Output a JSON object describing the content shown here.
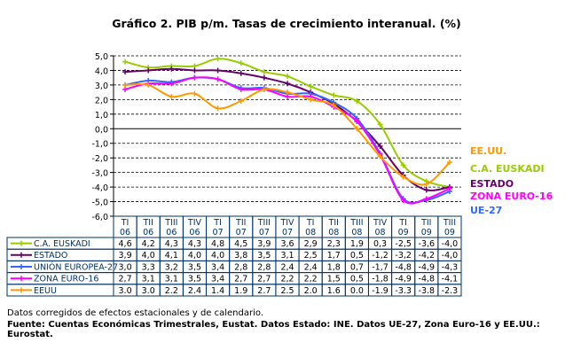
{
  "chart_data": {
    "type": "line",
    "title": "Gráfico 2. PIB p/m. Tasas de crecimiento interanual. (%)",
    "categories": [
      [
        "TI",
        "06"
      ],
      [
        "TII",
        "06"
      ],
      [
        "TIII",
        "06"
      ],
      [
        "TIV",
        "06"
      ],
      [
        "TI",
        "07"
      ],
      [
        "TII",
        "07"
      ],
      [
        "TIII",
        "07"
      ],
      [
        "TIV",
        "07"
      ],
      [
        "TI",
        "08"
      ],
      [
        "TII",
        "08"
      ],
      [
        "TIII",
        "08"
      ],
      [
        "TIV",
        "08"
      ],
      [
        "TI",
        "09"
      ],
      [
        "TII",
        "09"
      ],
      [
        "TIII",
        "09"
      ]
    ],
    "ylim": [
      -6,
      5
    ],
    "yticks": [
      "5,0",
      "4,0",
      "3,0",
      "2,0",
      "1,0",
      "0,0",
      "-1,0",
      "-2,0",
      "-3,0",
      "-4,0",
      "-5,0",
      "-6,0"
    ],
    "grid": true,
    "legend_placement": "table below plot; labels at right end of lines",
    "series": [
      {
        "name": "C.A. EUSKADI",
        "label": "C.A. EUSKADI",
        "color": "#99cc00",
        "values": [
          4.6,
          4.2,
          4.3,
          4.3,
          4.8,
          4.5,
          3.9,
          3.6,
          2.9,
          2.3,
          1.9,
          0.3,
          -2.5,
          -3.6,
          -4.0
        ],
        "display": [
          "4,6",
          "4,2",
          "4,3",
          "4,3",
          "4,8",
          "4,5",
          "3,9",
          "3,6",
          "2,9",
          "2,3",
          "1,9",
          "0,3",
          "-2,5",
          "-3,6",
          "-4,0"
        ]
      },
      {
        "name": "ESTADO",
        "label": "ESTADO",
        "color": "#660066",
        "values": [
          3.9,
          4.0,
          4.1,
          4.0,
          4.0,
          3.8,
          3.5,
          3.1,
          2.5,
          1.7,
          0.5,
          -1.2,
          -3.2,
          -4.2,
          -4.0
        ],
        "display": [
          "3,9",
          "4,0",
          "4,1",
          "4,0",
          "4,0",
          "3,8",
          "3,5",
          "3,1",
          "2,5",
          "1,7",
          "0,5",
          "-1,2",
          "-3,2",
          "-4,2",
          "-4,0"
        ]
      },
      {
        "name": "UNIÓN EUROPEA-27",
        "label": "UE-27",
        "color": "#3366ff",
        "values": [
          3.0,
          3.3,
          3.2,
          3.5,
          3.4,
          2.8,
          2.8,
          2.4,
          2.4,
          1.8,
          0.7,
          -1.7,
          -4.8,
          -4.9,
          -4.3
        ],
        "display": [
          "3,0",
          "3,3",
          "3,2",
          "3,5",
          "3,4",
          "2,8",
          "2,8",
          "2,4",
          "2,4",
          "1,8",
          "0,7",
          "-1,7",
          "-4,8",
          "-4,9",
          "-4,3"
        ]
      },
      {
        "name": "ZONA EURO-16",
        "label": "ZONA EURO-16",
        "color": "#ff00ff",
        "values": [
          2.7,
          3.1,
          3.1,
          3.5,
          3.4,
          2.7,
          2.7,
          2.2,
          2.2,
          1.5,
          0.5,
          -1.8,
          -4.9,
          -4.8,
          -4.1
        ],
        "display": [
          "2,7",
          "3,1",
          "3,1",
          "3,5",
          "3,4",
          "2,7",
          "2,7",
          "2,2",
          "2,2",
          "1,5",
          "0,5",
          "-1,8",
          "-4,9",
          "-4,8",
          "-4,1"
        ]
      },
      {
        "name": "EEUU",
        "label": "EE.UU.",
        "color": "#ff9900",
        "values": [
          3.0,
          3.0,
          2.2,
          2.4,
          1.4,
          1.9,
          2.7,
          2.5,
          2.0,
          1.6,
          0.0,
          -1.9,
          -3.3,
          -3.8,
          -2.3
        ],
        "display": [
          "3.0",
          "3.0",
          "2.2",
          "2.4",
          "1.4",
          "1.9",
          "2.7",
          "2.5",
          "2.0",
          "1.6",
          "0.0",
          "-1.9",
          "-3.3",
          "-3.8",
          "-2.3"
        ]
      }
    ]
  },
  "notes": {
    "line1": "Datos corregidos de efectos estacionales y de calendario.",
    "line2": "Fuente: Cuentas Económicas Trimestrales, Eustat. Datos Estado: INE. Datos UE-27, Zona Euro-16 y EE.UU.: Eurostat."
  }
}
